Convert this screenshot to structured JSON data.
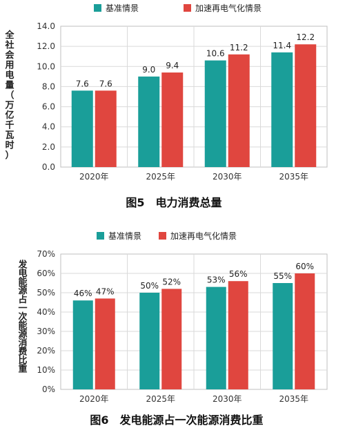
{
  "chart_data": [
    {
      "type": "bar",
      "caption": "图5　电力消费总量",
      "ylabel": "全社会用电量（万亿千瓦时）",
      "categories": [
        "2020年",
        "2025年",
        "2030年",
        "2035年"
      ],
      "series": [
        {
          "name": "基准情景",
          "values": [
            7.6,
            9.0,
            10.6,
            11.4
          ],
          "labels": [
            "7.6",
            "9.0",
            "10.6",
            "11.4"
          ]
        },
        {
          "name": "加速再电气化情景",
          "values": [
            7.6,
            9.4,
            11.2,
            12.2
          ],
          "labels": [
            "7.6",
            "9.4",
            "11.2",
            "12.2"
          ]
        }
      ],
      "ylim": [
        0,
        14
      ],
      "yticks": [
        "0.0",
        "2.0",
        "4.0",
        "6.0",
        "8.0",
        "10.0",
        "12.0",
        "14.0"
      ],
      "grid": true,
      "legend": "top"
    },
    {
      "type": "bar",
      "caption": "图6　发电能源占一次能源消费比重",
      "ylabel": "发电能源占一次能源消费比重",
      "categories": [
        "2020年",
        "2025年",
        "2030年",
        "2035年"
      ],
      "series": [
        {
          "name": "基准情景",
          "values": [
            46,
            50,
            53,
            55
          ],
          "labels": [
            "46%",
            "50%",
            "53%",
            "55%"
          ]
        },
        {
          "name": "加速再电气化情景",
          "values": [
            47,
            52,
            56,
            60
          ],
          "labels": [
            "47%",
            "52%",
            "56%",
            "60%"
          ]
        }
      ],
      "ylim": [
        0,
        70
      ],
      "yticks": [
        "0%",
        "10%",
        "20%",
        "30%",
        "40%",
        "50%",
        "60%",
        "70%"
      ],
      "grid": true,
      "legend": "top"
    }
  ],
  "colors": {
    "series_1": "#1a9e99",
    "series_2": "#e0463f",
    "grid": "#d9d9d9",
    "axis": "#bfbfbf"
  }
}
